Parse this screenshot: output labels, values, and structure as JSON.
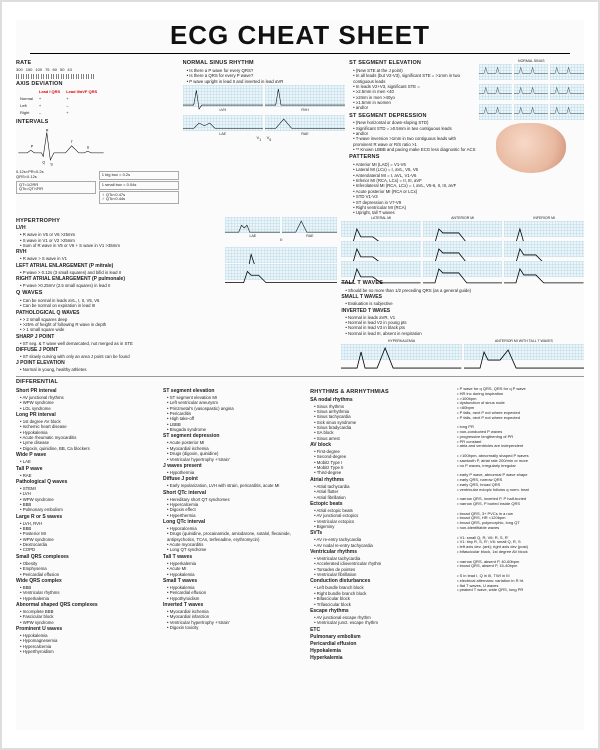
{
  "title": "ECG CHEAT SHEET",
  "colors": {
    "accent_red": "#d00000",
    "grid_bg": "#eaf4f9",
    "grid_line": "#bcdce8",
    "text": "#222222"
  },
  "rate": {
    "title": "RATE",
    "ticks": [
      "300",
      "150",
      "100",
      "75",
      "60",
      "50",
      "43"
    ]
  },
  "axis": {
    "title": "AXIS DEVIATION",
    "rows": [
      "Normal",
      "Left",
      "Right"
    ],
    "cols": [
      "Lead I QRS",
      "Lead II/aVF QRS"
    ],
    "cells": [
      [
        "+",
        "+"
      ],
      [
        "+",
        "–"
      ],
      [
        "–",
        "+"
      ]
    ]
  },
  "intervals": {
    "title": "INTERVALS",
    "bigbox": "1 big box = 0.2s",
    "smallbox": "1 small box = 0.04s",
    "pr": "0.12s<PR<0.2s",
    "qrs": "QRS<0.12s",
    "qt": "QT<1/2RR",
    "qtc": "QTc=QT/√RR",
    "qtc_limits": [
      "♀ QTc<0.47s",
      "♂ QTc<0.44s"
    ],
    "labels": [
      "P",
      "Q",
      "R",
      "S",
      "T",
      "U"
    ]
  },
  "nsr": {
    "title": "NORMAL SINUS RHYTHM",
    "items": [
      "Is there a P wave for every QRS?",
      "Is there a QRS for every P wave?",
      "P wave upright in lead II and inverted in lead aVR"
    ]
  },
  "hypertrophy": {
    "title": "HYPERTROPHY",
    "lvh": {
      "title": "LVH",
      "items": [
        "R wave in V5 or V6 >25mm",
        "S wave in V1 or V2 >25mm",
        "Sum of R wave in V5 or V6 + S wave in V1 >35mm"
      ]
    },
    "rvh": {
      "title": "RVH",
      "items": [
        "R wave > S wave in V1"
      ]
    },
    "lae": {
      "title": "LEFT ATRIAL ENLARGEMENT (P mitrale)",
      "items": [
        "P wave > 0.12s (3 small squares) and bifid in lead II"
      ]
    },
    "rae": {
      "title": "RIGHT ATRIAL ENLARGEMENT (P pulmonale)",
      "items": [
        "P wave >0.25mV (2.5 small squares) in lead II"
      ]
    },
    "strip_labels": [
      "LVH",
      "RVH",
      "LAE",
      "RAE",
      "II",
      "V1"
    ]
  },
  "qwaves": {
    "title": "Q WAVES",
    "normal": [
      "Can be normal in leads aVL, I, II, V5, V6",
      "Can be normal on expiration in lead III"
    ],
    "path_title": "PATHOLOGICAL Q WAVES",
    "path_items": [
      "> 2 small squares deep",
      ">25% of height of following R wave in depth",
      "> 1 small square wide"
    ]
  },
  "jpoint": {
    "sharp_title": "SHARP J POINT",
    "sharp_items": [
      "ST seg. & T wave well demarcated, not merged as in STE"
    ],
    "diffuse_title": "DIFFUSE J POINT",
    "diffuse_items": [
      "ST slowly curving with only an area J point can be found"
    ],
    "elev_title": "J POINT ELEVATION",
    "elev_items": [
      "Normal in young, healthy athletes"
    ]
  },
  "stsegment": {
    "elev_title": "ST SEGMENT ELEVATION",
    "elev_items": [
      "(New STE at the J point)",
      "In all leads (but V2-V3), significant STE = >1mm in two contiguous leads",
      "In leads V2+V3, significant STE =",
      "  ≥2.5mm in men <40",
      "  ≥2mm in men >40yo",
      "  ≥1.5mm in women",
      "and/or"
    ],
    "dep_title": "ST SEGMENT DEPRESSION",
    "dep_items": [
      "(New horizontal or down-sloping STD)",
      "Significant STD = ≥0.5mm in two contiguous leads",
      "and/or",
      "T-wave inversion >1mm in two contiguous leads with prominent R wave or R/S ratio >1",
      "** Known LBBB and pacing make ECG less diagnostic for ACS"
    ],
    "patterns_title": "PATTERNS",
    "patterns": [
      "Anterior MI (LAD) = V1-V6",
      "Lateral MI (LCx) = I, aVL, V5, V6",
      "Anterolateral MI = I, aVL, V1-V6",
      "Inferior MI (RCA, LCx) = II, III, aVF",
      "Inferolateral MI (RCA, LCx) = I, aVL, V5-6, II, III, aVF",
      "Acute posterior MI (RCA or LCx)",
      "  STD V1-V3",
      "  ST depression in V7-V9",
      "Right ventricular MI (RCA)",
      "  Upright, tall T waves"
    ],
    "strip_titles": [
      "NORMAL SINUS",
      "LATERAL MI",
      "ANTERIOR MI",
      "INFERIOR MI",
      "HYPERKALEMIA",
      "ANTERIOR MI WITH TALL T WAVES"
    ]
  },
  "tallt": {
    "title": "TALL T WAVES",
    "items": [
      "Should be no more than 1/2 preceding QRS (as a general guide)"
    ],
    "small_title": "SMALL T WAVES",
    "small_items": [
      "Evaluation is subjective"
    ],
    "inv_title": "INVERTED T WAVES",
    "inv_items": [
      "Normal in leads aVR, V1",
      "Normal in lead V2 in young pts",
      "Normal in lead V3 in black pts",
      "Normal in lead III, absent in respiration"
    ]
  },
  "differential": {
    "title": "DIFFERENTIAL",
    "left": [
      {
        "h": "Short PR interval",
        "i": [
          "AV junctional rhythms",
          "WPW syndrome",
          "LGL syndrome"
        ]
      },
      {
        "h": "Long PR interval",
        "i": [
          "1st degree AV block",
          "Ischemic heart disease",
          "Hypokalemia",
          "Acute rheumatic myocarditis",
          "Lyme disease",
          "Digoxin, quinidine, BB, Ca blockers"
        ]
      },
      {
        "h": "Wide P wave",
        "i": [
          "LAE"
        ]
      },
      {
        "h": "Tall P wave",
        "i": [
          "RAE"
        ]
      },
      {
        "h": "Pathological Q waves",
        "i": [
          "STEMI",
          "LVH",
          "WPW syndrome",
          "BBB",
          "Pulmonary embolism"
        ]
      },
      {
        "h": "Large R or S waves",
        "i": [
          "LVH, RVH",
          "BBB",
          "Posterior MI",
          "WPW syndrome",
          "Dextrocardia",
          "COPD"
        ]
      },
      {
        "h": "Small QRS complexes",
        "i": [
          "Obesity",
          "Emphysema",
          "Pericardial effusion"
        ]
      },
      {
        "h": "Wide QRS complex",
        "i": [
          "BBB",
          "Ventricular rhythms",
          "Hyperkalemia"
        ]
      },
      {
        "h": "Abnormal shaped QRS complexes",
        "i": [
          "Incomplete BBB",
          "Fascicular block",
          "WPW syndrome"
        ]
      },
      {
        "h": "Prominent U waves",
        "i": [
          "Hypokalemia",
          "Hypomagnesemia",
          "Hypercalcemia",
          "Hyperthyroidism"
        ]
      }
    ],
    "mid": [
      {
        "h": "ST segment elevation",
        "i": [
          "ST segment elevation MI",
          "Left ventricular aneurysm",
          "Prinzmetal's (vasospastic) angina",
          "Pericarditis",
          "High take-off",
          "LBBB",
          "Brugada syndrome"
        ]
      },
      {
        "h": "ST segment depression",
        "i": [
          "Acute posterior MI",
          "Myocardial ischemia",
          "Drugs (digoxin, quinidine)",
          "Ventricular hypertrophy +'strain'"
        ]
      },
      {
        "h": "J waves present",
        "i": [
          "Hypothermia"
        ]
      },
      {
        "h": "Diffuse J point",
        "i": [
          "Early repolarization, LVH with strain, pericarditis, acute MI"
        ]
      },
      {
        "h": "Short QTc interval",
        "i": [
          "Hereditary short QT syndromes",
          "Hypercalcemia",
          "Digoxin effect",
          "Hyperthermia"
        ]
      },
      {
        "h": "Long QTc interval",
        "i": [
          "Hypocalcemia",
          "Drugs (quinidine, procainamide, amiodarone, sotalol, flecainide, antipsychotics, TCAs, terfenadine, erythromycin)",
          "Acute myocarditis",
          "Long QT syndrome"
        ]
      },
      {
        "h": "Tall T waves",
        "i": [
          "Hyperkalemia",
          "Acute MI",
          "Hypokalemia"
        ]
      },
      {
        "h": "Small T waves",
        "i": [
          "Hypokalemia",
          "Pericardial effusion",
          "Hypothyroidism"
        ]
      },
      {
        "h": "Inverted T waves",
        "i": [
          "Myocardial ischemia",
          "Myocardial infarction",
          "Ventricular hypertrophy +'strain'",
          "Digoxin toxicity"
        ]
      }
    ],
    "rhythms_title": "RHYTHMS & ARRHYTHMIAS",
    "right": [
      {
        "h": "SA nodal rhythms",
        "i": [
          "Sinus rhythms",
          "Sinus arrhythmia",
          "Sinus tachycardia",
          "Sick sinus syndrome",
          "  Sinus bradycardia",
          "  SA block",
          "  Sinus arrest"
        ]
      },
      {
        "h": "AV block",
        "i": [
          "First-degree",
          "Second-degree",
          "  Mobitz Type I",
          "  Mobitz Type II",
          "Third-degree"
        ]
      },
      {
        "h": "Atrial rhythms",
        "i": [
          "Atrial tachycardia",
          "Atrial flutter",
          "Atrial fibrillation"
        ]
      },
      {
        "h": "Ectopic beats",
        "i": [
          "Atrial ectopic beats",
          "AV junctional ectopics",
          "Ventricular ectopics",
          "Bigeminy"
        ]
      },
      {
        "h": "SVTs",
        "i": [
          "AV re-entry tachycardia",
          "AV nodal re-entry tachycardia"
        ]
      },
      {
        "h": "Ventricular rhythms",
        "i": [
          "Ventricular tachycardia",
          "Accelerated idioventricular rhythm",
          "Torsades de pointes",
          "Ventricular fibrillation"
        ]
      },
      {
        "h": "Conduction disturbances",
        "i": [
          "Left bundle branch block",
          "Right bundle branch block",
          "Bifascicular block",
          "Trifascicular block"
        ]
      },
      {
        "h": "Escape rhythms",
        "i": [
          "AV junctional escape rhythm",
          "Ventricular junct. escape rhythm"
        ]
      },
      {
        "h": "ETC",
        "i": []
      },
      {
        "h": "Pulmonary embolism",
        "i": []
      },
      {
        "h": "Pericardial effusion",
        "i": []
      },
      {
        "h": "Hypokalemia",
        "i": []
      },
      {
        "h": "Hyperkalemia",
        "i": []
      }
    ],
    "far_right": [
      "P wave for q QRS, QRS for q P wave",
      "HR inc during inspiration",
      ">100bpm",
      "dysfunction of sinus node",
      "<60bpm",
      "P falls, next P not where expected",
      "P falls, next P not where expected",
      "",
      "long PR",
      "  non-conducted P waves",
      "    progressive lengthening of PR",
      "    PR constant",
      "  atria and ventricles are independent",
      "",
      ">100bpm, abnormally shaped P waves",
      "sawtooth P, atrial rate 200/min or more",
      "no P waves, irregularly irregular",
      "",
      "early P wave, abnormal P wave shape",
      "early QRS, narrow QRS",
      "early QRS, broad QRS",
      "ventricular ectopic follows q norm. beat",
      "",
      "narrow QRS, inverted P, P half-buried",
      "narrow QRS, P buried inside QRS",
      "",
      "broad QRS, 3+ PVCs in a row",
      "broad QRS, HR <120bpm",
      "broad QRS, polymorphic, long QT",
      "non-identifiable waves",
      "",
      "V1: small Q, R; V6: R, S, R'",
      "V1: tiny R, S, R'; V6: small Q, R, S",
      "left axis dev. (ant); right axis dev (post)",
      "bifascicular block, 1st degree AV block",
      "",
      "narrow QRS, absent P, 40-60bpm",
      "broad QRS, absent P, 15-40bpm",
      "",
      "S in lead I, Q in III, TWI in III",
      "electrical alternans: variation in R ht.",
      "flat T waves, U waves",
      "peaked T wave, wide QRS, long PR"
    ]
  }
}
